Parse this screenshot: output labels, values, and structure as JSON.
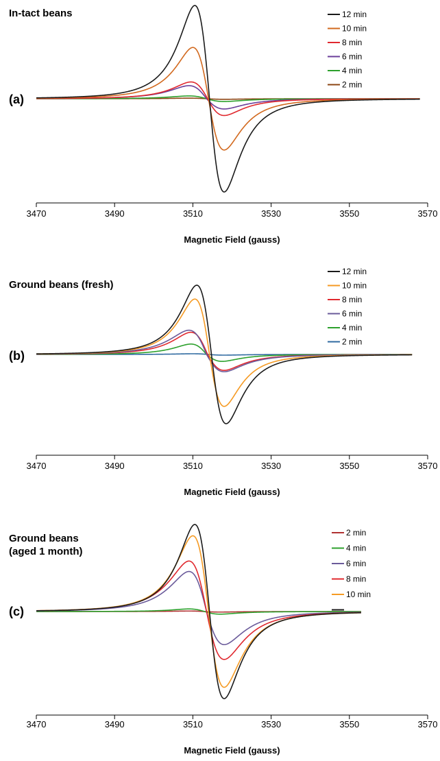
{
  "chart_data": [
    {
      "type": "line",
      "panel_label": "(a)",
      "title": "In-tact beans",
      "xlabel": "Magnetic Field (gauss)",
      "xlim": [
        3470,
        3570
      ],
      "xticks": [
        3470,
        3490,
        3510,
        3530,
        3550,
        3570
      ],
      "data_end": 3568,
      "legend_position": "top-right",
      "series": [
        {
          "name": "12 min",
          "color": "#1a1a1a",
          "amplitude": 1.0,
          "pos_peak_x": 3510.5,
          "neg_peak_x": 3518.0,
          "pos_peak": 1.0,
          "neg_peak": -1.0
        },
        {
          "name": "10 min",
          "color": "#d2691e",
          "amplitude": 0.55,
          "pos_peak_x": 3510.0,
          "neg_peak_x": 3518.0,
          "pos_peak": 0.55,
          "neg_peak": -0.55
        },
        {
          "name": "8 min",
          "color": "#e0282e",
          "amplitude": 0.18,
          "pos_peak_x": 3509.5,
          "neg_peak_x": 3518.0,
          "pos_peak": 0.18,
          "neg_peak": -0.18
        },
        {
          "name": "6 min",
          "color": "#6a3d9a",
          "amplitude": 0.14,
          "pos_peak_x": 3509.0,
          "neg_peak_x": 3518.0,
          "pos_peak": 0.14,
          "neg_peak": -0.11
        },
        {
          "name": "4 min",
          "color": "#2ca02c",
          "amplitude": 0.03,
          "pos_peak_x": 3509.0,
          "neg_peak_x": 3518.0,
          "pos_peak": 0.03,
          "neg_peak": -0.03
        },
        {
          "name": "2 min",
          "color": "#8b4513",
          "amplitude": 0.006,
          "pos_peak_x": 3509.0,
          "neg_peak_x": 3518.0,
          "pos_peak": 0.006,
          "neg_peak": -0.006
        }
      ]
    },
    {
      "type": "line",
      "panel_label": "(b)",
      "title": "Ground beans (fresh)",
      "xlabel": "Magnetic Field (gauss)",
      "xlim": [
        3470,
        3570
      ],
      "xticks": [
        3470,
        3490,
        3510,
        3530,
        3550,
        3570
      ],
      "data_end": 3566,
      "legend_position": "top-right",
      "series": [
        {
          "name": "12 min",
          "color": "#1a1a1a",
          "amplitude": 1.0,
          "pos_peak_x": 3511.0,
          "neg_peak_x": 3518.5,
          "pos_peak": 1.0,
          "neg_peak": -1.0
        },
        {
          "name": "10 min",
          "color": "#f59a23",
          "amplitude": 0.8,
          "pos_peak_x": 3510.5,
          "neg_peak_x": 3518.0,
          "pos_peak": 0.8,
          "neg_peak": -0.75
        },
        {
          "name": "8 min",
          "color": "#e0282e",
          "amplitude": 0.32,
          "pos_peak_x": 3509.5,
          "neg_peak_x": 3518.0,
          "pos_peak": 0.32,
          "neg_peak": -0.23
        },
        {
          "name": "6 min",
          "color": "#6a5a9a",
          "amplitude": 0.35,
          "pos_peak_x": 3509.0,
          "neg_peak_x": 3518.0,
          "pos_peak": 0.35,
          "neg_peak": -0.25
        },
        {
          "name": "4 min",
          "color": "#2ca02c",
          "amplitude": 0.15,
          "pos_peak_x": 3509.5,
          "neg_peak_x": 3517.5,
          "pos_peak": 0.15,
          "neg_peak": -0.1
        },
        {
          "name": "2 min",
          "color": "#2f6aa0",
          "amplitude": 0.01,
          "pos_peak_x": 3510.0,
          "neg_peak_x": 3518.0,
          "pos_peak": 0.01,
          "neg_peak": -0.01
        }
      ]
    },
    {
      "type": "line",
      "panel_label": "(c)",
      "title": "Ground beans\n(aged 1 month)",
      "title_lines": [
        "Ground beans",
        "(aged 1 month)"
      ],
      "xlabel": "Magnetic Field (gauss)",
      "xlim": [
        3470,
        3570
      ],
      "xticks": [
        3470,
        3490,
        3510,
        3530,
        3550,
        3570
      ],
      "data_end": 3553,
      "legend_position": "top-right",
      "series": [
        {
          "name": "2 min",
          "color": "#b03030",
          "amplitude": 0.006,
          "pos_peak_x": 3509.0,
          "neg_peak_x": 3517.0,
          "pos_peak": 0.006,
          "neg_peak": -0.006
        },
        {
          "name": "4 min",
          "color": "#2ca02c",
          "amplitude": 0.03,
          "pos_peak_x": 3509.0,
          "neg_peak_x": 3517.0,
          "pos_peak": 0.03,
          "neg_peak": -0.03
        },
        {
          "name": "6 min",
          "color": "#6a5a9a",
          "amplitude": 0.46,
          "pos_peak_x": 3509.0,
          "neg_peak_x": 3518.0,
          "pos_peak": 0.46,
          "neg_peak": -0.38
        },
        {
          "name": "8 min",
          "color": "#e0282e",
          "amplitude": 0.58,
          "pos_peak_x": 3509.0,
          "neg_peak_x": 3518.0,
          "pos_peak": 0.58,
          "neg_peak": -0.55
        },
        {
          "name": "10 min",
          "color": "#f59a23",
          "amplitude": 0.87,
          "pos_peak_x": 3510.0,
          "neg_peak_x": 3518.0,
          "pos_peak": 0.87,
          "neg_peak": -0.87
        },
        {
          "name": "",
          "color": "#1a1a1a",
          "amplitude": 1.0,
          "pos_peak_x": 3510.5,
          "neg_peak_x": 3518.0,
          "pos_peak": 1.0,
          "neg_peak": -1.0
        }
      ]
    }
  ]
}
